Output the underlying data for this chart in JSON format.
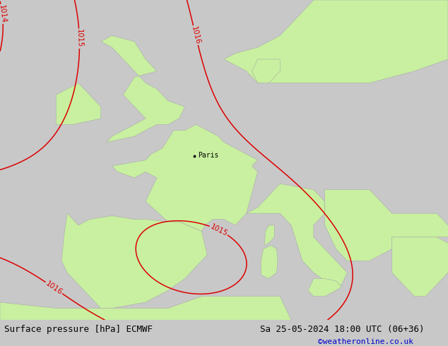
{
  "title_left": "Surface pressure [hPa] ECMWF",
  "title_right": "Sa 25-05-2024 18:00 UTC (06+36)",
  "credit": "©weatheronline.co.uk",
  "credit_color": "#0000cc",
  "sea_color": "#d0d0d0",
  "land_color": "#c8f0a0",
  "coast_color": "#aaaaaa",
  "bottom_bar_color": "#c8c8c8",
  "contour_red_color": "#dd0000",
  "contour_blue_color": "#0044cc",
  "contour_black_color": "#000000",
  "label_fontsize": 7.5,
  "title_fontsize": 9,
  "credit_fontsize": 8,
  "figsize": [
    6.34,
    4.9
  ],
  "dpi": 100
}
